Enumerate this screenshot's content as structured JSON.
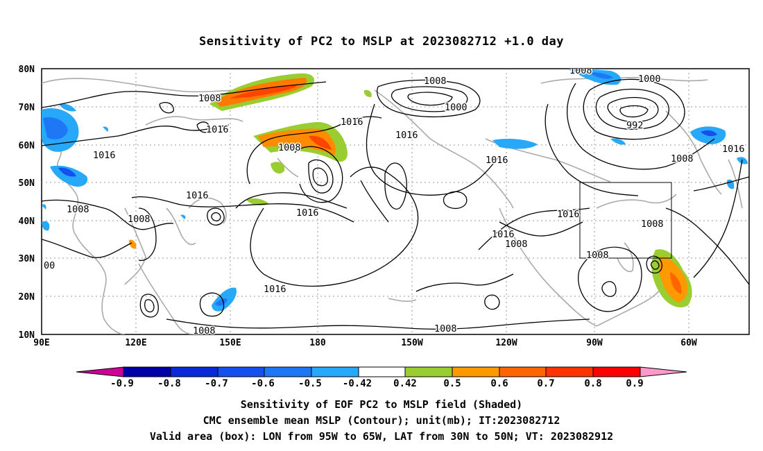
{
  "title": "Sensitivity of PC2 to MSLP at 2023082712 +1.0 day",
  "map": {
    "lat_labels": [
      "80N",
      "70N",
      "60N",
      "50N",
      "40N",
      "30N",
      "20N",
      "10N"
    ],
    "lon_labels": [
      "90E",
      "120E",
      "150E",
      "180",
      "150W",
      "120W",
      "90W",
      "60W"
    ],
    "valid_box": {
      "lon_from": "95W",
      "lon_to": "65W",
      "lat_from": "30N",
      "lat_to": "50N"
    },
    "contour_labels": [
      "1008",
      "1016",
      "1008",
      "1016",
      "1008",
      "1016",
      "1008",
      "00",
      "1008",
      "1000",
      "1016",
      "1016",
      "1016",
      "1016",
      "1008",
      "1008",
      "1000",
      "992",
      "1016",
      "1008",
      "1016",
      "1016",
      "1016",
      "1008",
      "1008",
      "1008",
      "1008"
    ]
  },
  "colorbar": {
    "labels": [
      "-0.9",
      "-0.8",
      "-0.7",
      "-0.6",
      "-0.5",
      "-0.42",
      "0.42",
      "0.5",
      "0.6",
      "0.7",
      "0.8",
      "0.9"
    ],
    "colors": [
      "#0000a8",
      "#0a2ad8",
      "#1450f0",
      "#1e78f5",
      "#28a8f8",
      "#ffffff",
      "#9acd32",
      "#ff9900",
      "#ff6600",
      "#ff3300",
      "#ff0000"
    ],
    "low_end_color": "#cc0099",
    "high_end_color": "#ff99cc"
  },
  "captions": {
    "line1": "Sensitivity of EOF PC2 to MSLP field (Shaded)",
    "line2": "CMC ensemble mean MSLP (Contour); unit(mb); IT:2023082712",
    "line3": "Valid area (box): LON from 95W to 65W, LAT from 30N to 50N; VT: 2023082912"
  }
}
